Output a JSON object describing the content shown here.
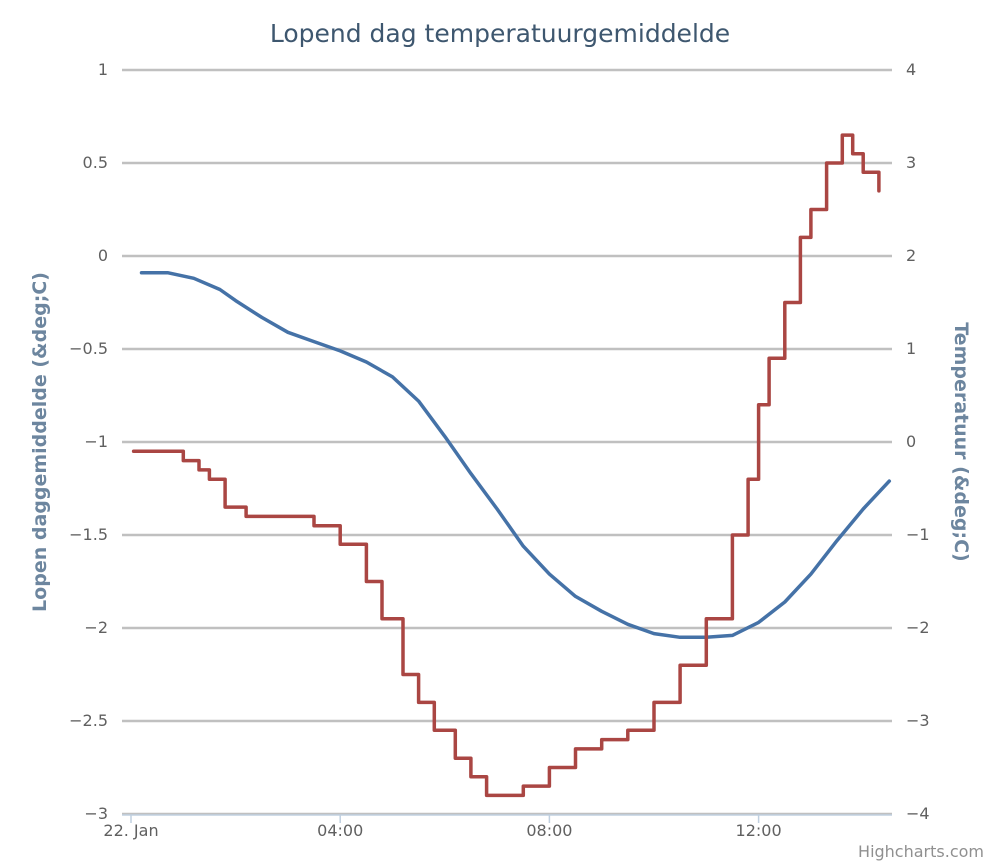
{
  "chart_data": {
    "type": "line",
    "title": "Lopend dag temperatuurgemiddelde",
    "credits": "Highcharts.com",
    "grid": true,
    "legend": "none",
    "x_axis": {
      "type": "datetime",
      "range_hours": [
        0,
        14.7
      ],
      "tick_hours": [
        0,
        4,
        8,
        12
      ],
      "tick_labels": [
        "22. Jan",
        "04:00",
        "08:00",
        "12:00"
      ]
    },
    "y_axis_left": {
      "title": "Lopen daggemiddelde (&deg;C)",
      "range": [
        -3,
        1
      ],
      "ticks": [
        1,
        0.5,
        0,
        -0.5,
        -1,
        -1.5,
        -2,
        -2.5,
        -3
      ],
      "tick_labels": [
        "1",
        "0.5",
        "0",
        "−0.5",
        "−1",
        "−1.5",
        "−2",
        "−2.5",
        "−3"
      ]
    },
    "y_axis_right": {
      "title": "Temperatuur (&deg;C)",
      "range": [
        -4,
        4
      ],
      "ticks": [
        4,
        3,
        2,
        1,
        0,
        -1,
        -2,
        -3,
        -4
      ],
      "tick_labels": [
        "4",
        "3",
        "2",
        "1",
        "0",
        "−1",
        "−2",
        "−3",
        "−4"
      ]
    },
    "series": [
      {
        "axis": "left",
        "color": "#4572a7",
        "points": [
          [
            0.2,
            -0.09
          ],
          [
            0.7,
            -0.09
          ],
          [
            1.2,
            -0.12
          ],
          [
            1.7,
            -0.18
          ],
          [
            2.0,
            -0.24
          ],
          [
            2.5,
            -0.33
          ],
          [
            3.0,
            -0.41
          ],
          [
            3.5,
            -0.46
          ],
          [
            4.0,
            -0.51
          ],
          [
            4.5,
            -0.57
          ],
          [
            5.0,
            -0.65
          ],
          [
            5.5,
            -0.78
          ],
          [
            6.0,
            -0.97
          ],
          [
            6.5,
            -1.17
          ],
          [
            7.0,
            -1.36
          ],
          [
            7.5,
            -1.56
          ],
          [
            8.0,
            -1.71
          ],
          [
            8.5,
            -1.83
          ],
          [
            9.0,
            -1.91
          ],
          [
            9.5,
            -1.98
          ],
          [
            10.0,
            -2.03
          ],
          [
            10.5,
            -2.05
          ],
          [
            11.0,
            -2.05
          ],
          [
            11.5,
            -2.04
          ],
          [
            12.0,
            -1.97
          ],
          [
            12.5,
            -1.86
          ],
          [
            13.0,
            -1.71
          ],
          [
            13.5,
            -1.53
          ],
          [
            14.0,
            -1.36
          ],
          [
            14.5,
            -1.21
          ]
        ]
      },
      {
        "axis": "right",
        "color": "#aa4643",
        "points": [
          [
            0.05,
            -0.1
          ],
          [
            0.8,
            -0.1
          ],
          [
            1.0,
            -0.2
          ],
          [
            1.3,
            -0.3
          ],
          [
            1.5,
            -0.4
          ],
          [
            1.8,
            -0.7
          ],
          [
            2.2,
            -0.8
          ],
          [
            3.0,
            -0.8
          ],
          [
            3.5,
            -0.9
          ],
          [
            4.0,
            -1.1
          ],
          [
            4.5,
            -1.5
          ],
          [
            4.8,
            -1.9
          ],
          [
            5.2,
            -2.5
          ],
          [
            5.5,
            -2.8
          ],
          [
            5.8,
            -3.1
          ],
          [
            6.2,
            -3.4
          ],
          [
            6.5,
            -3.6
          ],
          [
            6.8,
            -3.8
          ],
          [
            7.2,
            -3.8
          ],
          [
            7.5,
            -3.7
          ],
          [
            8.0,
            -3.5
          ],
          [
            8.5,
            -3.3
          ],
          [
            9.0,
            -3.2
          ],
          [
            9.5,
            -3.1
          ],
          [
            10.0,
            -2.8
          ],
          [
            10.5,
            -2.4
          ],
          [
            11.0,
            -1.9
          ],
          [
            11.5,
            -1.0
          ],
          [
            11.8,
            -0.4
          ],
          [
            12.0,
            0.4
          ],
          [
            12.2,
            0.9
          ],
          [
            12.5,
            1.5
          ],
          [
            12.8,
            2.2
          ],
          [
            13.0,
            2.5
          ],
          [
            13.3,
            3.0
          ],
          [
            13.6,
            3.3
          ],
          [
            13.8,
            3.1
          ],
          [
            14.0,
            2.9
          ],
          [
            14.3,
            2.7
          ]
        ]
      }
    ]
  }
}
